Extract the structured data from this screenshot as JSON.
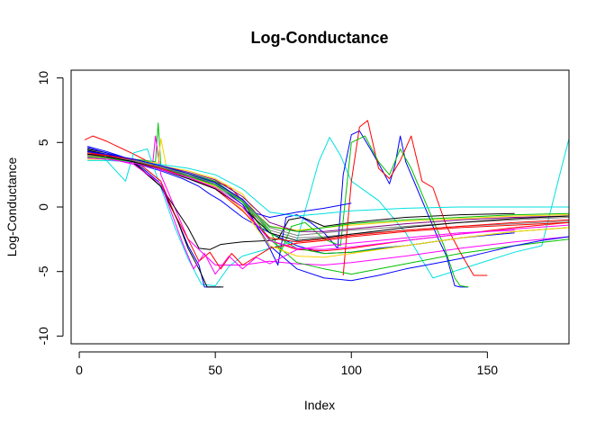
{
  "chart_data": {
    "type": "line",
    "title": "Log-Conductance",
    "xlabel": "Index",
    "ylabel": "Log-Conductance",
    "xlim": [
      -3,
      180
    ],
    "ylim": [
      -10.6,
      10.6
    ],
    "xticks": [
      0,
      50,
      100,
      150
    ],
    "yticks": [
      -10,
      -5,
      0,
      5,
      10
    ],
    "xtick_labels": [
      "0",
      "50",
      "100",
      "150"
    ],
    "ytick_labels": [
      "-10",
      "-5",
      "0",
      "5",
      "10"
    ],
    "grid": false,
    "legend": "none",
    "series": [
      {
        "color": "#0000ff",
        "x": [
          3,
          10,
          20,
          30,
          38,
          44,
          48,
          52,
          60,
          70,
          80,
          90,
          100,
          110,
          120,
          130,
          140,
          150,
          160
        ],
        "y": [
          4.4,
          4.0,
          3.4,
          2.8,
          2.2,
          1.6,
          1.0,
          0.5,
          -0.8,
          -2.0,
          -3.0,
          -3.6,
          -3.5,
          -3.2,
          -3.0,
          -2.7,
          -2.4,
          -2.2,
          -2.0
        ]
      },
      {
        "color": "#ff0000",
        "x": [
          2,
          5,
          10,
          20,
          30,
          40,
          48,
          55,
          60,
          65,
          70,
          80,
          90,
          100,
          120,
          140,
          160,
          180
        ],
        "y": [
          5.2,
          5.5,
          5.1,
          4.1,
          3.0,
          2.5,
          2.1,
          1.6,
          0.5,
          -1.0,
          -2.6,
          -3.3,
          -3.4,
          -3.2,
          -2.6,
          -2.1,
          -1.6,
          -1.2
        ]
      },
      {
        "color": "#00c000",
        "x": [
          3,
          10,
          20,
          28,
          29,
          30,
          32,
          40,
          50,
          60,
          70,
          80,
          90,
          100,
          120,
          140,
          160,
          180
        ],
        "y": [
          4.0,
          3.9,
          3.7,
          3.5,
          6.5,
          3.2,
          3.0,
          2.6,
          2.0,
          0.5,
          -2.0,
          -3.2,
          -3.6,
          -3.5,
          -3.0,
          -2.4,
          -1.9,
          -1.6
        ]
      },
      {
        "color": "#00e0e0",
        "x": [
          3,
          10,
          17,
          20,
          25,
          30,
          35,
          40,
          45,
          50,
          55,
          60,
          70,
          80,
          88,
          92,
          96,
          100,
          110,
          120,
          130,
          160,
          170,
          176,
          180
        ],
        "y": [
          4.3,
          3.6,
          2.0,
          4.2,
          4.5,
          1.5,
          -1.5,
          -4.0,
          -6.0,
          -6.1,
          -4.6,
          -3.8,
          -3.2,
          -2.6,
          3.5,
          5.4,
          4.0,
          2.0,
          0.5,
          -2.0,
          -5.5,
          -3.5,
          -3.0,
          2.0,
          5.3
        ]
      },
      {
        "color": "#ff00ff",
        "x": [
          3,
          10,
          20,
          27,
          28,
          30,
          35,
          40,
          50,
          60,
          70,
          80,
          90,
          100,
          120,
          140,
          160,
          180
        ],
        "y": [
          3.9,
          3.8,
          3.6,
          3.4,
          5.5,
          2.5,
          0.0,
          -2.5,
          -4.5,
          -4.5,
          -4.2,
          -4.4,
          -4.5,
          -4.3,
          -3.8,
          -3.2,
          -2.7,
          -2.3
        ]
      },
      {
        "color": "#ffd000",
        "x": [
          3,
          10,
          20,
          29,
          30,
          32,
          40,
          50,
          60,
          65,
          70,
          80,
          90,
          100,
          120,
          140,
          160,
          180
        ],
        "y": [
          3.7,
          3.7,
          3.6,
          3.4,
          5.3,
          3.1,
          2.8,
          2.2,
          1.0,
          -0.5,
          -1.5,
          -1.8,
          -1.6,
          -1.4,
          -1.1,
          -0.9,
          -0.7,
          -0.6
        ]
      },
      {
        "color": "#808080",
        "x": [
          3,
          10,
          20,
          30,
          40,
          50,
          60,
          70,
          80,
          90,
          100,
          120,
          140,
          160,
          180
        ],
        "y": [
          4.1,
          3.9,
          3.6,
          3.0,
          2.4,
          1.6,
          0.2,
          -1.8,
          -2.4,
          -2.3,
          -2.1,
          -1.8,
          -1.5,
          -1.3,
          -1.1
        ]
      },
      {
        "color": "#000000",
        "x": [
          3,
          10,
          20,
          30,
          40,
          44,
          48,
          52,
          60,
          70,
          73,
          77,
          82,
          90,
          100,
          120,
          140,
          160
        ],
        "y": [
          4.4,
          4.1,
          3.4,
          1.6,
          -1.6,
          -3.2,
          -3.3,
          -2.9,
          -2.7,
          -2.6,
          -2.5,
          -1.0,
          -0.8,
          -1.5,
          -1.2,
          -0.8,
          -0.6,
          -0.5
        ]
      },
      {
        "color": "#0000ff",
        "x": [
          3,
          10,
          20,
          30,
          36,
          40,
          44,
          46,
          48,
          50,
          52
        ],
        "y": [
          4.7,
          4.3,
          3.6,
          1.8,
          -1.0,
          -3.0,
          -4.5,
          -6.2,
          -6.2,
          -6.2,
          -6.2
        ]
      },
      {
        "color": "#000000",
        "x": [
          3,
          10,
          20,
          30,
          36,
          40,
          44,
          47,
          50,
          53
        ],
        "y": [
          4.5,
          4.2,
          3.5,
          1.6,
          -1.0,
          -3.2,
          -4.8,
          -6.2,
          -6.2,
          -6.2
        ]
      },
      {
        "color": "#0000ff",
        "x": [
          3,
          10,
          20,
          30,
          40,
          50,
          60,
          66,
          70,
          73,
          76,
          80,
          85,
          90,
          95,
          97,
          100,
          103,
          107,
          111,
          114,
          116,
          118,
          120,
          124,
          128,
          132,
          135,
          138,
          140,
          143
        ],
        "y": [
          4.6,
          4.2,
          3.6,
          3.0,
          2.4,
          1.8,
          0.6,
          -1.8,
          -3.2,
          -4.5,
          -0.8,
          -0.6,
          -1.2,
          -2.0,
          -3.2,
          2.5,
          5.6,
          5.9,
          4.5,
          3.0,
          1.8,
          3.2,
          5.5,
          3.5,
          1.5,
          -0.5,
          -2.5,
          -3.8,
          -6.1,
          -6.2,
          -6.2
        ]
      },
      {
        "color": "#ff0000",
        "x": [
          97,
          100,
          103,
          106,
          110,
          114,
          118,
          122,
          126,
          130,
          135,
          140,
          145,
          150
        ],
        "y": [
          -5.3,
          2.0,
          6.2,
          6.7,
          3.0,
          2.2,
          3.6,
          5.5,
          2.0,
          1.5,
          -1.5,
          -3.5,
          -5.3,
          -5.3
        ]
      },
      {
        "color": "#00c000",
        "x": [
          3,
          10,
          20,
          30,
          40,
          50,
          60,
          70,
          74,
          78,
          83,
          90,
          96,
          100,
          105,
          110,
          114,
          118,
          122,
          126,
          130,
          134,
          138,
          140,
          143
        ],
        "y": [
          4.0,
          3.9,
          3.6,
          3.1,
          2.5,
          1.9,
          0.6,
          -1.8,
          -3.5,
          -1.5,
          -1.2,
          -2.5,
          -3.0,
          5.0,
          5.5,
          3.5,
          2.5,
          4.5,
          3.0,
          1.0,
          -1.0,
          -3.0,
          -5.5,
          -6.1,
          -6.2
        ]
      },
      {
        "color": "#800080",
        "x": [
          3,
          10,
          20,
          30,
          40,
          50,
          60,
          70,
          80,
          90,
          100,
          120,
          140,
          160,
          180
        ],
        "y": [
          4.2,
          4.0,
          3.7,
          3.2,
          2.7,
          2.1,
          0.8,
          -1.2,
          -1.9,
          -1.9,
          -1.7,
          -1.3,
          -1.0,
          -0.8,
          -0.7
        ]
      },
      {
        "color": "#00c000",
        "x": [
          3,
          10,
          20,
          30,
          40,
          50,
          60,
          70,
          80,
          90,
          100,
          120,
          140,
          160,
          180
        ],
        "y": [
          3.8,
          3.7,
          3.5,
          3.1,
          2.6,
          1.9,
          0.4,
          -2.5,
          -4.3,
          -4.8,
          -5.2,
          -4.4,
          -3.6,
          -3.0,
          -2.5
        ]
      },
      {
        "color": "#0000ff",
        "x": [
          3,
          10,
          20,
          30,
          40,
          50,
          60,
          70,
          80,
          90,
          100,
          110,
          120,
          130,
          140,
          150,
          160,
          170,
          180
        ],
        "y": [
          4.3,
          4.0,
          3.5,
          3.0,
          2.5,
          1.8,
          0.2,
          -3.0,
          -4.8,
          -5.5,
          -5.7,
          -5.3,
          -4.8,
          -4.4,
          -4.0,
          -3.5,
          -3.0,
          -2.6,
          -2.3
        ]
      },
      {
        "color": "#ff0000",
        "x": [
          3,
          10,
          20,
          30,
          35,
          40,
          44,
          48,
          52,
          56,
          60,
          70,
          80,
          90,
          100,
          120,
          140,
          160,
          180
        ],
        "y": [
          4.1,
          4.0,
          3.7,
          2.0,
          -0.5,
          -2.5,
          -4.2,
          -3.5,
          -4.8,
          -3.6,
          -4.5,
          -3.2,
          -2.8,
          -2.6,
          -2.3,
          -1.9,
          -1.6,
          -1.4,
          -1.2
        ]
      },
      {
        "color": "#ff00ff",
        "x": [
          3,
          10,
          20,
          30,
          34,
          38,
          42,
          46,
          50,
          55,
          60,
          65,
          70,
          80,
          90,
          100,
          120,
          140,
          160
        ],
        "y": [
          4.0,
          3.8,
          3.3,
          1.8,
          -0.5,
          -2.8,
          -4.8,
          -3.6,
          -5.2,
          -3.8,
          -4.8,
          -3.9,
          -4.4,
          -3.3,
          -3.0,
          -2.8,
          -2.4,
          -2.0,
          -1.8
        ]
      },
      {
        "color": "#00e0e0",
        "x": [
          3,
          10,
          20,
          30,
          40,
          50,
          60,
          70,
          80,
          90,
          100,
          120,
          140,
          160,
          180
        ],
        "y": [
          3.6,
          3.6,
          3.5,
          3.3,
          3.0,
          2.5,
          1.4,
          -0.4,
          -0.7,
          -0.5,
          -0.3,
          -0.1,
          0.0,
          0.0,
          0.0
        ]
      },
      {
        "color": "#ffd000",
        "x": [
          3,
          10,
          20,
          30,
          40,
          50,
          60,
          70,
          80,
          90,
          100,
          120,
          140,
          160,
          180
        ],
        "y": [
          4.0,
          3.8,
          3.5,
          3.0,
          2.4,
          1.6,
          -0.2,
          -3.0,
          -3.8,
          -3.9,
          -3.6,
          -3.0,
          -2.4,
          -1.9,
          -1.6
        ]
      },
      {
        "color": "#0000ff",
        "x": [
          3,
          10,
          20,
          30,
          40,
          50,
          60,
          65,
          70,
          80,
          90,
          95,
          100
        ],
        "y": [
          4.3,
          4.1,
          3.7,
          3.2,
          2.6,
          1.9,
          0.6,
          -0.5,
          -0.8,
          -0.4,
          -0.1,
          0.1,
          0.3
        ]
      },
      {
        "color": "#00c000",
        "x": [
          3,
          10,
          20,
          30,
          40,
          50,
          60,
          70,
          80,
          90,
          100,
          120,
          140,
          160,
          180
        ],
        "y": [
          3.9,
          3.8,
          3.5,
          3.0,
          2.4,
          1.7,
          0.4,
          -1.5,
          -1.9,
          -1.6,
          -1.3,
          -1.0,
          -0.8,
          -0.6,
          -0.5
        ]
      },
      {
        "color": "#ff0000",
        "x": [
          3,
          10,
          20,
          30,
          40,
          50,
          60,
          70,
          80,
          90,
          100,
          120,
          140,
          160,
          180
        ],
        "y": [
          4.2,
          4.0,
          3.6,
          3.0,
          2.3,
          1.4,
          -0.3,
          -2.4,
          -2.7,
          -2.5,
          -2.2,
          -1.8,
          -1.5,
          -1.2,
          -1.0
        ]
      },
      {
        "color": "#808080",
        "x": [
          3,
          10,
          20,
          30,
          40,
          50,
          60,
          70,
          80,
          90,
          100,
          120,
          140,
          160,
          180
        ],
        "y": [
          4.0,
          3.9,
          3.6,
          3.1,
          2.5,
          1.8,
          0.5,
          -1.6,
          -2.2,
          -2.0,
          -1.8,
          -1.5,
          -1.2,
          -1.0,
          -0.8
        ]
      },
      {
        "color": "#000000",
        "x": [
          3,
          10,
          20,
          30,
          40,
          50,
          60,
          70,
          80,
          90,
          100,
          120,
          140,
          160,
          180
        ],
        "y": [
          4.1,
          3.9,
          3.5,
          2.9,
          2.2,
          1.4,
          0.0,
          -2.0,
          -2.6,
          -2.4,
          -2.1,
          -1.6,
          -1.2,
          -0.9,
          -0.7
        ]
      },
      {
        "color": "#ff00ff",
        "x": [
          3,
          10,
          20,
          30,
          40,
          50,
          60,
          70,
          80,
          90,
          100,
          120,
          140,
          160,
          180
        ],
        "y": [
          3.8,
          3.7,
          3.4,
          2.9,
          2.3,
          1.5,
          0.0,
          -2.6,
          -3.2,
          -3.3,
          -3.1,
          -2.6,
          -2.1,
          -1.7,
          -1.4
        ]
      }
    ]
  }
}
